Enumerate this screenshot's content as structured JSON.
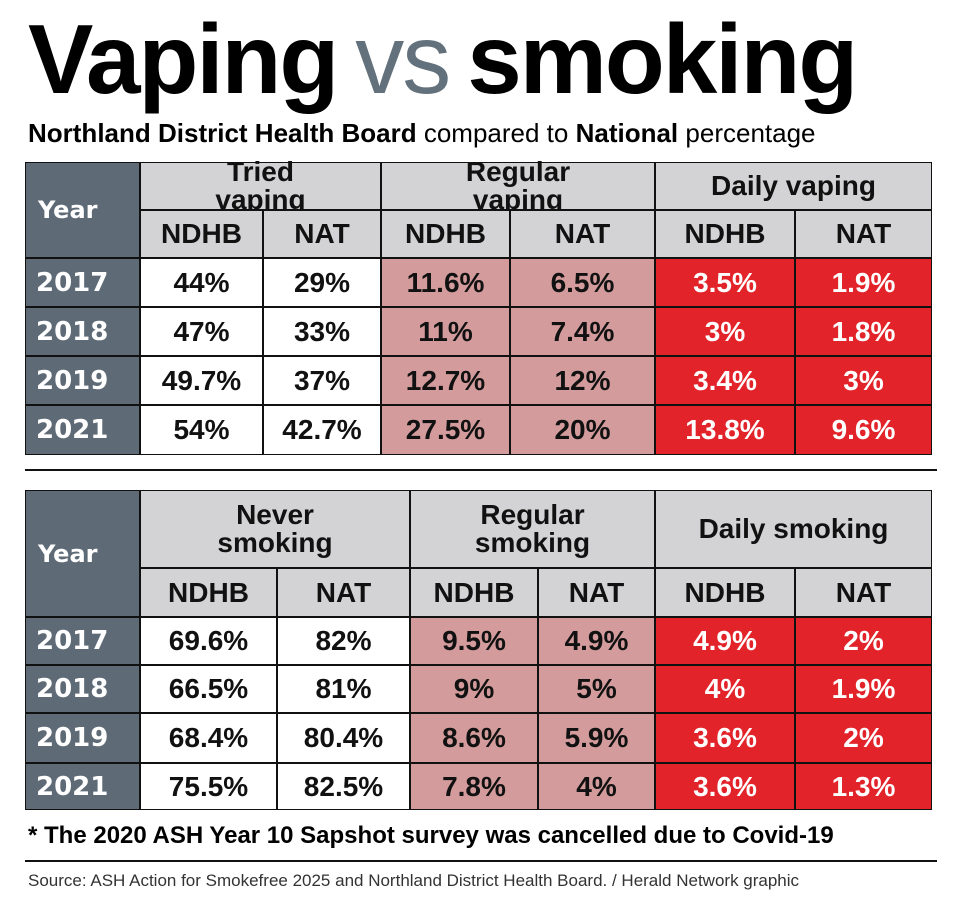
{
  "title": {
    "word1": "Vaping",
    "vs": "vs",
    "word2": "smoking"
  },
  "subtitle": {
    "bold1": "Northland District Health Board",
    "text1": "compared to",
    "bold2": "National",
    "text2": "percentage"
  },
  "tables": [
    {
      "year_label": "Year",
      "groups": [
        "Tried vaping",
        "Regular vaping",
        "Daily vaping"
      ],
      "subheaders": [
        "NDHB",
        "NAT",
        "NDHB",
        "NAT",
        "NDHB",
        "NAT"
      ],
      "rows": [
        {
          "year": "2017",
          "cells": [
            "44%",
            "29%",
            "11.6%",
            "6.5%",
            "3.5%",
            "1.9%"
          ]
        },
        {
          "year": "2018",
          "cells": [
            "47%",
            "33%",
            "11%",
            "7.4%",
            "3%",
            "1.8%"
          ]
        },
        {
          "year": "2019",
          "cells": [
            "49.7%",
            "37%",
            "12.7%",
            "12%",
            "3.4%",
            "3%"
          ]
        },
        {
          "year": "2021",
          "cells": [
            "54%",
            "42.7%",
            "27.5%",
            "20%",
            "13.8%",
            "9.6%"
          ]
        }
      ]
    },
    {
      "year_label": "Year",
      "groups": [
        "Never smoking",
        "Regular smoking",
        "Daily smoking"
      ],
      "subheaders": [
        "NDHB",
        "NAT",
        "NDHB",
        "NAT",
        "NDHB",
        "NAT"
      ],
      "rows": [
        {
          "year": "2017",
          "cells": [
            "69.6%",
            "82%",
            "9.5%",
            "4.9%",
            "4.9%",
            "2%"
          ]
        },
        {
          "year": "2018",
          "cells": [
            "66.5%",
            "81%",
            "9%",
            "5%",
            "4%",
            "1.9%"
          ]
        },
        {
          "year": "2019",
          "cells": [
            "68.4%",
            "80.4%",
            "8.6%",
            "5.9%",
            "3.6%",
            "2%"
          ]
        },
        {
          "year": "2021",
          "cells": [
            "75.5%",
            "82.5%",
            "7.8%",
            "4%",
            "3.6%",
            "1.3%"
          ]
        }
      ]
    }
  ],
  "footnote": "* The 2020 ASH Year 10 Sapshot survey was cancelled due to Covid-19",
  "source": "Source: ASH Action for Smokefree 2025 and Northland District Health Board. / Herald Network graphic"
}
